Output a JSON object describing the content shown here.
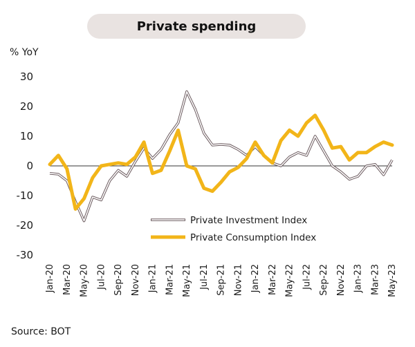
{
  "title": "Private spending",
  "unit_label": "% YoY",
  "source": "Source: BOT",
  "chart_data": {
    "type": "line",
    "title": "Private spending",
    "ylabel": "% YoY",
    "ylim": [
      -30,
      30
    ],
    "yticks": [
      30,
      20,
      10,
      0,
      -10,
      -20,
      -30
    ],
    "x": [
      "Jan-20",
      "Feb-20",
      "Mar-20",
      "Apr-20",
      "May-20",
      "Jun-20",
      "Jul-20",
      "Aug-20",
      "Sep-20",
      "Oct-20",
      "Nov-20",
      "Dec-20",
      "Jan-21",
      "Feb-21",
      "Mar-21",
      "Apr-21",
      "May-21",
      "Jun-21",
      "Jul-21",
      "Aug-21",
      "Sep-21",
      "Oct-21",
      "Nov-21",
      "Dec-21",
      "Jan-22",
      "Feb-22",
      "Mar-22",
      "Apr-22",
      "May-22",
      "Jun-22",
      "Jul-22",
      "Aug-22",
      "Sep-22",
      "Oct-22",
      "Nov-22",
      "Dec-22",
      "Jan-23",
      "Feb-23",
      "Mar-23",
      "Apr-23",
      "May-23"
    ],
    "xtick_labels": [
      "Jan-20",
      "Mar-20",
      "May-20",
      "Jul-20",
      "Sep-20",
      "Nov-20",
      "Jan-21",
      "Mar-21",
      "May-21",
      "Jul-21",
      "Sep-21",
      "Nov-21",
      "Jan-22",
      "Mar-22",
      "May-22",
      "Jul-22",
      "Sep-22",
      "Nov-22",
      "Jan-23",
      "Mar-23",
      "May-23"
    ],
    "legend_position": "lower-center",
    "grid": false,
    "series": [
      {
        "name": "Private Investment Index",
        "color": "#6b5a5e",
        "style": "double",
        "values": [
          -2.5,
          -2.8,
          -5,
          -12,
          -18.5,
          -10.5,
          -11.5,
          -5,
          -1.5,
          -3.5,
          1.5,
          6,
          2.5,
          5.5,
          10.5,
          14.5,
          25,
          19,
          11,
          7,
          7.2,
          7,
          5.5,
          3.5,
          6.5,
          3.5,
          1,
          0,
          3,
          4.5,
          3.5,
          10,
          5,
          0,
          -2,
          -4.5,
          -3.5,
          0,
          0.5,
          -3,
          2
        ]
      },
      {
        "name": "Private Consumption Index",
        "color": "#f2b519",
        "style": "thick",
        "values": [
          0.5,
          3.5,
          -1,
          -14.5,
          -11,
          -4,
          0,
          0.5,
          1,
          0.5,
          3,
          8,
          -2.5,
          -1.5,
          5,
          12,
          0,
          -1,
          -7.5,
          -8.5,
          -5.5,
          -2,
          -0.5,
          2.5,
          8,
          3.5,
          1,
          8.5,
          12,
          10,
          14.5,
          17,
          12,
          6,
          6.5,
          2,
          4.5,
          4.5,
          6.5,
          8,
          7
        ]
      }
    ]
  }
}
